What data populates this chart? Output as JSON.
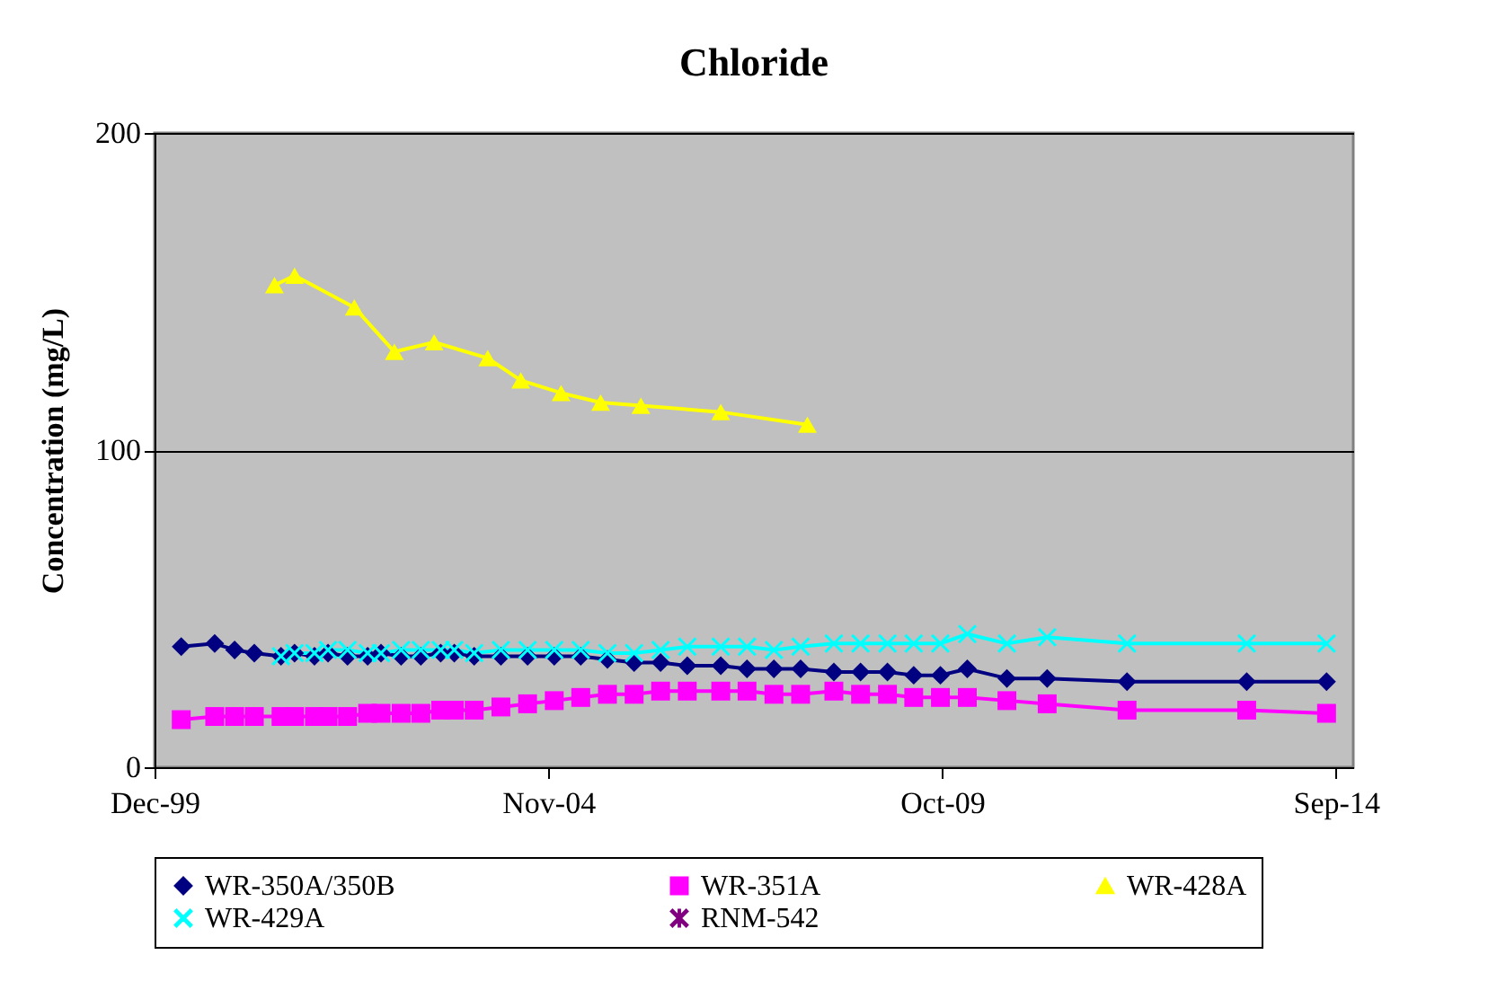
{
  "chart_data": {
    "type": "line",
    "title": "Chloride",
    "ylabel": "Concentration (mg/L)",
    "xlim": [
      "1999-12-01",
      "2014-12-01"
    ],
    "xticks": [
      {
        "value": "1999-12-01",
        "label": "Dec-99"
      },
      {
        "value": "2004-11-04",
        "label": "Nov-04"
      },
      {
        "value": "2009-10-09",
        "label": "Oct-09"
      },
      {
        "value": "2014-09-13",
        "label": "Sep-14"
      }
    ],
    "ylim": [
      0,
      200
    ],
    "yticks": [
      0,
      100,
      200
    ],
    "grid": "y",
    "legend": "bottom",
    "line_style": "solid",
    "x": [
      "2000-04",
      "2000-09",
      "2000-12",
      "2001-03",
      "2001-07",
      "2001-09",
      "2001-12",
      "2002-02",
      "2002-05",
      "2002-08",
      "2002-10",
      "2003-01",
      "2003-04",
      "2003-07",
      "2003-09",
      "2003-12",
      "2004-04",
      "2004-08",
      "2004-12",
      "2005-04",
      "2005-08",
      "2005-12",
      "2006-04",
      "2006-08",
      "2007-01",
      "2007-05",
      "2007-09",
      "2008-01",
      "2008-06",
      "2008-10",
      "2009-02",
      "2009-06",
      "2009-10",
      "2010-02",
      "2010-08",
      "2011-02",
      "2012-02",
      "2013-08",
      "2014-08"
    ],
    "series": [
      {
        "name": "WR-350A/350B",
        "color": "#000080",
        "marker": "diamond",
        "values": [
          38,
          39,
          37,
          36,
          35,
          36,
          35,
          36,
          35,
          35,
          36,
          35,
          35,
          36,
          36,
          35,
          35,
          35,
          35,
          35,
          34,
          33,
          33,
          32,
          32,
          31,
          31,
          31,
          30,
          30,
          30,
          29,
          29,
          31,
          28,
          28,
          27,
          27,
          27
        ]
      },
      {
        "name": "WR-351A",
        "color": "#ff00ff",
        "marker": "square",
        "values": [
          15,
          16,
          16,
          16,
          16,
          16,
          16,
          16,
          16,
          17,
          17,
          17,
          17,
          18,
          18,
          18,
          19,
          20,
          21,
          22,
          23,
          23,
          24,
          24,
          24,
          24,
          23,
          23,
          24,
          23,
          23,
          22,
          22,
          22,
          21,
          20,
          18,
          18,
          17
        ]
      },
      {
        "name": "WR-428A",
        "color": "#ffff00",
        "marker": "triangle",
        "x": [
          "2001-06",
          "2001-09",
          "2002-06",
          "2002-12",
          "2003-06",
          "2004-02",
          "2004-07",
          "2005-01",
          "2005-07",
          "2006-01",
          "2007-01",
          "2008-02"
        ],
        "values": [
          152,
          155,
          145,
          131,
          134,
          129,
          122,
          118,
          115,
          114,
          112,
          108
        ]
      },
      {
        "name": "WR-429A",
        "color": "#00ffff",
        "marker": "cross",
        "x": [
          "2001-07",
          "2001-09",
          "2001-12",
          "2002-02",
          "2002-05",
          "2002-08",
          "2002-10",
          "2003-01",
          "2003-04",
          "2003-07",
          "2003-09",
          "2003-12",
          "2004-04",
          "2004-08",
          "2004-12",
          "2005-04",
          "2005-08",
          "2005-12",
          "2006-04",
          "2006-08",
          "2007-01",
          "2007-05",
          "2007-09",
          "2008-01",
          "2008-06",
          "2008-10",
          "2009-02",
          "2009-06",
          "2009-10",
          "2010-02",
          "2010-08",
          "2011-02",
          "2012-02",
          "2013-08",
          "2014-08"
        ],
        "values": [
          35,
          36,
          36,
          37,
          37,
          36,
          36,
          37,
          37,
          37,
          37,
          36,
          37,
          37,
          37,
          37,
          36,
          36,
          37,
          38,
          38,
          38,
          37,
          38,
          39,
          39,
          39,
          39,
          39,
          42,
          39,
          41,
          39,
          39,
          39
        ]
      },
      {
        "name": "RNM-542",
        "color": "#800080",
        "marker": "star",
        "values": [
          null,
          null,
          null,
          null,
          null,
          null,
          null,
          null,
          null,
          null,
          null,
          null,
          null,
          null,
          null,
          null,
          null,
          null,
          null,
          null,
          null,
          null,
          null,
          null,
          null,
          null,
          null,
          null,
          null,
          null,
          null,
          null,
          null,
          null,
          null,
          null,
          null,
          null,
          null
        ]
      }
    ]
  }
}
